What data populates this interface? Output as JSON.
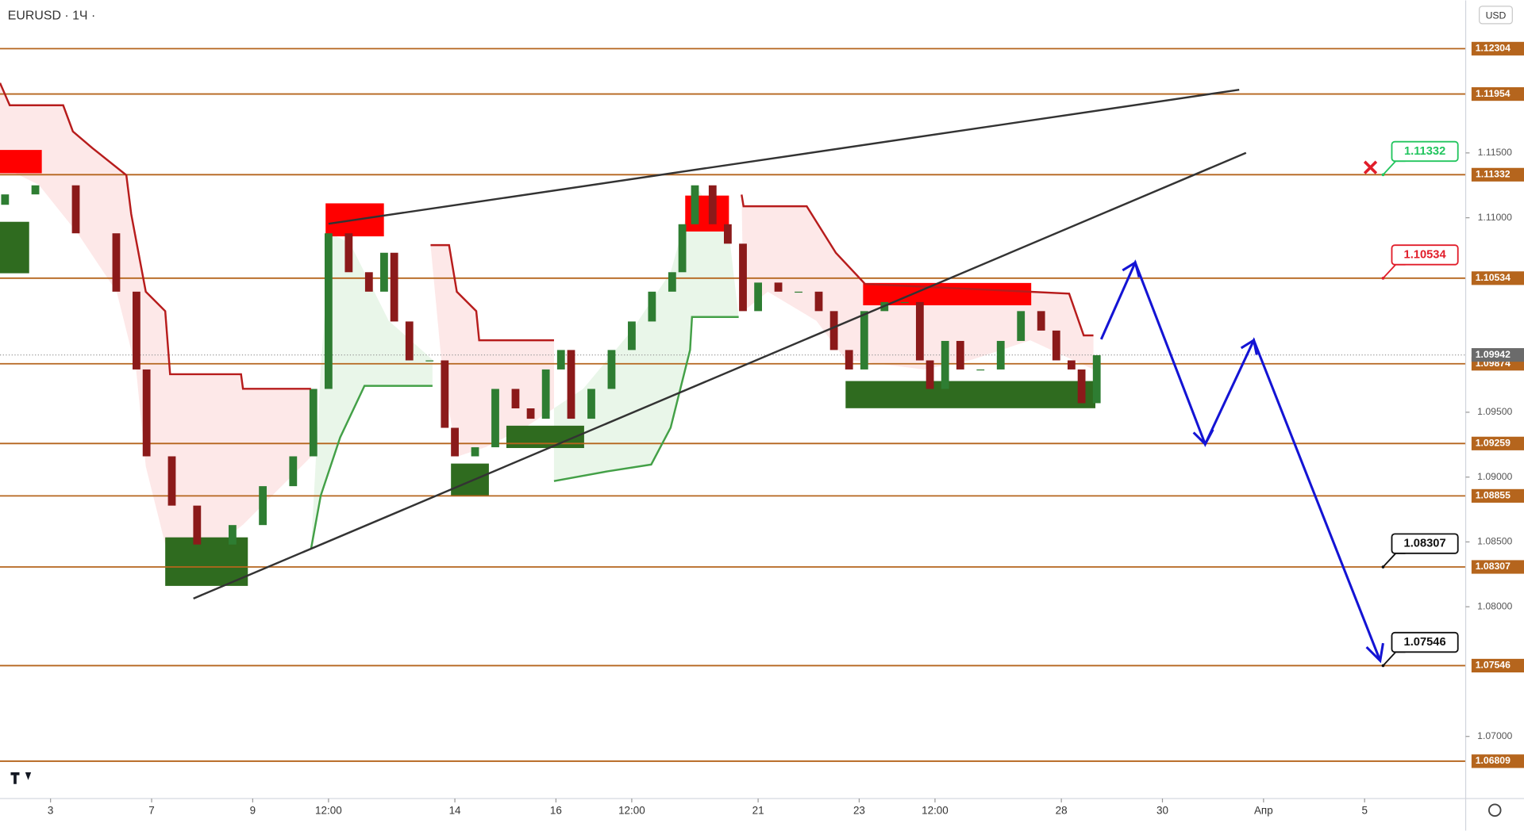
{
  "chart_data": {
    "type": "candlestick",
    "title": "EURUSD · 1Ч ·",
    "currency": "USD",
    "up_color": "#2e7d32",
    "down_color": "#8b1a1a",
    "level_color": "#b5651d",
    "x": [
      -0.9,
      -0.3,
      0.5,
      1.3,
      1.7,
      1.9,
      2.4,
      2.9,
      3.6,
      4.2,
      4.8,
      5.2,
      5.5,
      5.9,
      6.3,
      6.6,
      6.8,
      7.1,
      7.5,
      7.8,
      8.0,
      8.4,
      8.8,
      9.2,
      9.5,
      9.8,
      10.1,
      10.3,
      10.7,
      11.1,
      11.5,
      11.9,
      12.3,
      12.5,
      12.75,
      13.1,
      13.4,
      13.7,
      14.0,
      14.4,
      14.8,
      15.2,
      15.5,
      15.8,
      16.1,
      16.5,
      16.9,
      17.2,
      17.4,
      17.7,
      18.0,
      18.4,
      18.8,
      19.2,
      19.6,
      19.9,
      20.2,
      20.4,
      20.7
    ],
    "open": [
      1.111,
      1.1118,
      1.1125,
      1.1088,
      1.1043,
      1.0983,
      1.0916,
      1.0878,
      1.0848,
      1.0863,
      1.0893,
      1.0916,
      1.0968,
      1.1088,
      1.1058,
      1.1043,
      1.1073,
      1.102,
      1.099,
      1.099,
      1.0938,
      1.0916,
      1.0923,
      1.0968,
      1.0953,
      1.0945,
      1.0983,
      1.0998,
      1.0945,
      1.0968,
      1.0998,
      1.102,
      1.1043,
      1.1058,
      1.1095,
      1.1125,
      1.1095,
      1.108,
      1.1028,
      1.105,
      1.1043,
      1.1043,
      1.1028,
      1.0998,
      1.0983,
      1.1028,
      1.1035,
      1.1035,
      1.099,
      1.0968,
      1.1005,
      1.0983,
      1.0983,
      1.1005,
      1.1028,
      1.1013,
      1.099,
      1.0983,
      1.0957
    ],
    "close": [
      1.1118,
      1.1125,
      1.1088,
      1.1043,
      1.0983,
      1.0916,
      1.0878,
      1.0848,
      1.0863,
      1.0893,
      1.0916,
      1.0968,
      1.1088,
      1.1058,
      1.1043,
      1.1073,
      1.102,
      1.099,
      1.099,
      1.0938,
      1.0916,
      1.0923,
      1.0968,
      1.0953,
      1.0945,
      1.0983,
      1.0998,
      1.0945,
      1.0968,
      1.0998,
      1.102,
      1.1043,
      1.1058,
      1.1095,
      1.1125,
      1.1095,
      1.108,
      1.1028,
      1.105,
      1.1043,
      1.1043,
      1.1028,
      1.0998,
      1.0983,
      1.1028,
      1.1035,
      1.1035,
      1.099,
      1.0968,
      1.1005,
      1.0983,
      1.0983,
      1.1005,
      1.1028,
      1.1013,
      1.099,
      1.0983,
      1.0957,
      1.0994
    ],
    "xlim": [
      -1.0,
      28.0
    ],
    "ylim": [
      1.06521,
      1.12676
    ],
    "xticks": [
      {
        "value": 0,
        "label": "3"
      },
      {
        "value": 2,
        "label": "7"
      },
      {
        "value": 4,
        "label": "9"
      },
      {
        "value": 5.5,
        "label": "12:00"
      },
      {
        "value": 8,
        "label": "14"
      },
      {
        "value": 10,
        "label": "16"
      },
      {
        "value": 11.5,
        "label": "12:00"
      },
      {
        "value": 14,
        "label": "21"
      },
      {
        "value": 16,
        "label": "23"
      },
      {
        "value": 17.5,
        "label": "12:00"
      },
      {
        "value": 20,
        "label": "28"
      },
      {
        "value": 22,
        "label": "30"
      },
      {
        "value": 24,
        "label": "Апр"
      },
      {
        "value": 26,
        "label": "5"
      }
    ],
    "yticks": [
      {
        "value": 1.115,
        "label": "1.11500"
      },
      {
        "value": 1.11,
        "label": "1.11000"
      },
      {
        "value": 1.095,
        "label": "1.09500"
      },
      {
        "value": 1.09,
        "label": "1.09000"
      },
      {
        "value": 1.085,
        "label": "1.08500"
      },
      {
        "value": 1.08,
        "label": "1.08000"
      },
      {
        "value": 1.07,
        "label": "1.07000"
      }
    ],
    "levels": [
      1.12304,
      1.11954,
      1.11332,
      1.10534,
      1.09874,
      1.09259,
      1.08855,
      1.08307,
      1.07546,
      1.06809
    ],
    "last_price": 1.09942,
    "callouts": [
      {
        "value": 1.11332,
        "color": "#22c55e"
      },
      {
        "value": 1.10534,
        "color": "#e11d2a"
      },
      {
        "value": 1.08307,
        "color": "#111111"
      },
      {
        "value": 1.07546,
        "color": "#111111"
      }
    ]
  }
}
